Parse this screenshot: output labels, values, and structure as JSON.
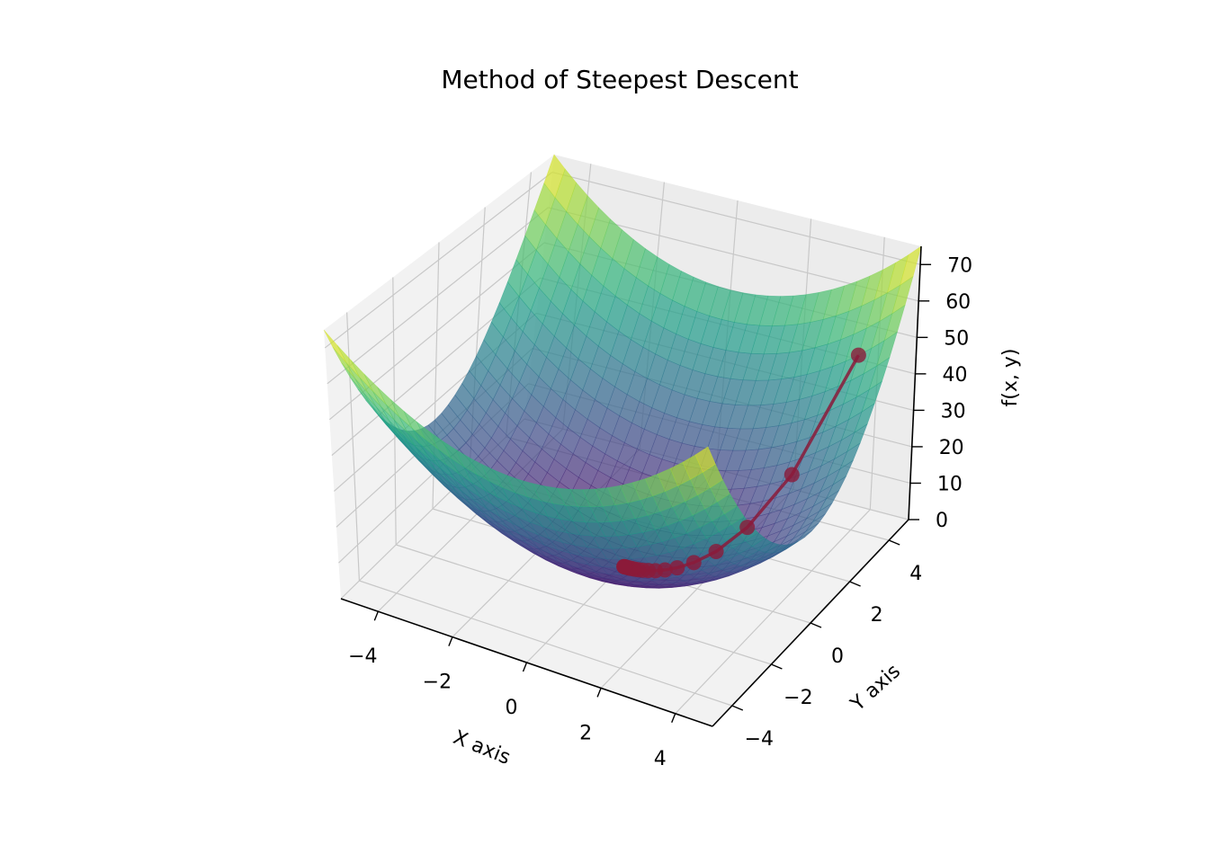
{
  "chart_data": {
    "type": "surface3d",
    "title": "Method of Steepest Descent",
    "xlabel": "X axis",
    "ylabel": "Y axis",
    "zlabel": "f(x, y)",
    "xlim": [
      -5,
      5
    ],
    "ylim": [
      -5,
      5
    ],
    "zlim": [
      0,
      75
    ],
    "x_ticks": [
      -4,
      -2,
      0,
      2,
      4
    ],
    "y_ticks": [
      -4,
      -2,
      0,
      2,
      4
    ],
    "z_ticks": [
      0,
      10,
      20,
      30,
      40,
      50,
      60,
      70
    ],
    "x_tick_labels": [
      "−4",
      "−2",
      "0",
      "2",
      "4"
    ],
    "y_tick_labels": [
      "−4",
      "−2",
      "0",
      "2",
      "4"
    ],
    "z_tick_labels": [
      "0",
      "10",
      "20",
      "30",
      "40",
      "50",
      "60",
      "70"
    ],
    "surface_function": "x^2 + 2*y^2",
    "colormap": "viridis",
    "surface_alpha": 0.7,
    "grid": true,
    "path": {
      "color": "#8b1a3a",
      "x": [
        4.0,
        3.2,
        2.56,
        2.05,
        1.64,
        1.31,
        1.05,
        0.84,
        0.67,
        0.54,
        0.43,
        0.34,
        0.27,
        0.22,
        0.18,
        0.14,
        0.11,
        0.09,
        0.07,
        0.06
      ],
      "y": [
        4.0,
        2.4,
        1.44,
        0.86,
        0.52,
        0.31,
        0.19,
        0.11,
        0.07,
        0.04,
        0.02,
        0.01,
        0.01,
        0.0,
        0.0,
        0.0,
        0.0,
        0.0,
        0.0,
        0.0
      ],
      "z": [
        48.0,
        21.76,
        10.7,
        5.69,
        3.23,
        1.91,
        1.17,
        0.73,
        0.46,
        0.29,
        0.19,
        0.12,
        0.07,
        0.05,
        0.03,
        0.02,
        0.01,
        0.01,
        0.0,
        0.0
      ]
    }
  }
}
